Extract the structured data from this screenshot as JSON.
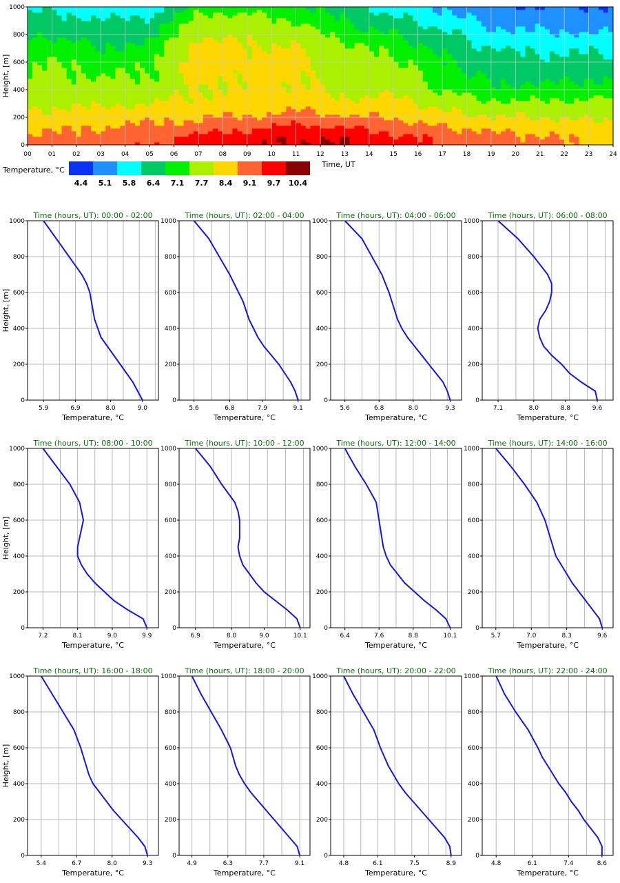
{
  "heatmap": {
    "ylabel": "Height, [m]",
    "xlabel": "Time, UT",
    "y_ticks": [
      "0",
      "200",
      "400",
      "600",
      "800",
      "1000"
    ],
    "x_ticks": [
      "00",
      "01",
      "02",
      "03",
      "04",
      "05",
      "06",
      "07",
      "08",
      "09",
      "10",
      "11",
      "12",
      "13",
      "14",
      "15",
      "16",
      "17",
      "18",
      "19",
      "20",
      "21",
      "22",
      "23",
      "24"
    ]
  },
  "colorbar": {
    "label": "Temperature, °C",
    "colors": [
      "#0a32f5",
      "#1e90ff",
      "#00ffff",
      "#00c864",
      "#00f000",
      "#aaf000",
      "#ffd700",
      "#ff6432",
      "#ff0000",
      "#8b0000"
    ],
    "labels": [
      "4.4",
      "5.1",
      "5.8",
      "6.4",
      "7.1",
      "7.7",
      "8.4",
      "9.1",
      "9.7",
      "10.4"
    ]
  },
  "panels_common": {
    "title_prefix": "Time (hours, UT): ",
    "xlabel": "Temperature, °C",
    "ylabel": "Height, [m]",
    "y_ticks": [
      "0",
      "200",
      "400",
      "600",
      "800",
      "1000"
    ]
  },
  "chart_data": [
    {
      "type": "heatmap",
      "title": "",
      "xlabel": "Time, UT",
      "ylabel": "Height, [m]",
      "x_range": [
        0,
        24
      ],
      "y_range": [
        0,
        1000
      ],
      "color_levels": [
        4.4,
        5.1,
        5.8,
        6.4,
        7.1,
        7.7,
        8.4,
        9.1,
        9.7,
        10.4
      ],
      "colorbar_label": "Temperature, °C"
    },
    {
      "type": "line",
      "time_range": "00:00 - 02:00",
      "xlabel": "Temperature, °C",
      "ylabel": "Height, [m]",
      "x_ticks": [
        "5.9",
        "6.9",
        "8.0",
        "9.0"
      ],
      "x_tick_values": [
        5.9,
        6.9,
        8.0,
        9.0
      ],
      "xlim": [
        5.4,
        9.5
      ],
      "ylim": [
        0,
        1000
      ],
      "height": [
        0,
        50,
        100,
        150,
        200,
        250,
        300,
        350,
        400,
        450,
        500,
        550,
        600,
        650,
        700,
        800,
        900,
        1000
      ],
      "temperature": [
        9.0,
        8.85,
        8.7,
        8.5,
        8.3,
        8.1,
        7.9,
        7.7,
        7.6,
        7.5,
        7.45,
        7.4,
        7.35,
        7.25,
        7.1,
        6.7,
        6.3,
        5.9
      ]
    },
    {
      "type": "line",
      "time_range": "02:00 - 04:00",
      "xlabel": "Temperature, °C",
      "ylabel": "Height, [m]",
      "x_ticks": [
        "5.6",
        "6.8",
        "7.9",
        "9.1"
      ],
      "x_tick_values": [
        5.6,
        6.8,
        7.9,
        9.1
      ],
      "xlim": [
        5.1,
        9.5
      ],
      "ylim": [
        0,
        1000
      ],
      "height": [
        0,
        50,
        100,
        150,
        200,
        250,
        300,
        350,
        400,
        450,
        500,
        550,
        600,
        700,
        800,
        900,
        1000
      ],
      "temperature": [
        9.1,
        9.0,
        8.85,
        8.65,
        8.45,
        8.2,
        7.95,
        7.75,
        7.6,
        7.45,
        7.35,
        7.25,
        7.1,
        6.8,
        6.45,
        6.1,
        5.6
      ]
    },
    {
      "type": "line",
      "time_range": "04:00 - 06:00",
      "xlabel": "Temperature, °C",
      "ylabel": "Height, [m]",
      "x_ticks": [
        "5.6",
        "6.8",
        "8.0",
        "9.3"
      ],
      "x_tick_values": [
        5.6,
        6.8,
        8.0,
        9.3
      ],
      "xlim": [
        5.1,
        9.7
      ],
      "ylim": [
        0,
        1000
      ],
      "height": [
        0,
        50,
        100,
        150,
        200,
        250,
        300,
        350,
        400,
        450,
        500,
        550,
        600,
        700,
        800,
        900,
        1000
      ],
      "temperature": [
        9.3,
        9.2,
        9.05,
        8.8,
        8.55,
        8.3,
        8.05,
        7.8,
        7.6,
        7.45,
        7.35,
        7.25,
        7.15,
        6.9,
        6.55,
        6.2,
        5.6
      ]
    },
    {
      "type": "line",
      "time_range": "06:00 - 08:00",
      "xlabel": "Temperature, °C",
      "ylabel": "Height, [m]",
      "x_ticks": [
        "7.1",
        "8.0",
        "8.8",
        "9.6"
      ],
      "x_tick_values": [
        7.1,
        8.0,
        8.8,
        9.6
      ],
      "xlim": [
        6.7,
        10.0
      ],
      "ylim": [
        0,
        1000
      ],
      "height": [
        0,
        50,
        100,
        150,
        200,
        250,
        300,
        350,
        400,
        450,
        500,
        550,
        600,
        650,
        700,
        800,
        900,
        1000
      ],
      "temperature": [
        9.6,
        9.55,
        9.2,
        8.9,
        8.7,
        8.45,
        8.25,
        8.15,
        8.1,
        8.15,
        8.3,
        8.4,
        8.45,
        8.45,
        8.35,
        8.0,
        7.6,
        7.1
      ]
    },
    {
      "type": "line",
      "time_range": "08:00 - 10:00",
      "xlabel": "Temperature, °C",
      "ylabel": "Height, [m]",
      "x_ticks": [
        "7.2",
        "8.1",
        "9.0",
        "9.9"
      ],
      "x_tick_values": [
        7.2,
        8.1,
        9.0,
        9.9
      ],
      "xlim": [
        6.8,
        10.2
      ],
      "ylim": [
        0,
        1000
      ],
      "height": [
        0,
        50,
        100,
        150,
        200,
        250,
        300,
        350,
        400,
        450,
        500,
        550,
        600,
        700,
        800,
        900,
        1000
      ],
      "temperature": [
        9.9,
        9.8,
        9.4,
        9.05,
        8.8,
        8.55,
        8.35,
        8.2,
        8.1,
        8.1,
        8.15,
        8.2,
        8.25,
        8.15,
        7.9,
        7.55,
        7.2
      ]
    },
    {
      "type": "line",
      "time_range": "10:00 - 12:00",
      "xlabel": "Temperature, °C",
      "ylabel": "Height, [m]",
      "x_ticks": [
        "6.9",
        "8.0",
        "9.0",
        "10.1"
      ],
      "x_tick_values": [
        6.9,
        8.0,
        9.0,
        10.1
      ],
      "xlim": [
        6.4,
        10.4
      ],
      "ylim": [
        0,
        1000
      ],
      "height": [
        0,
        50,
        100,
        150,
        200,
        250,
        300,
        350,
        400,
        450,
        500,
        550,
        600,
        650,
        700,
        800,
        900,
        1000
      ],
      "temperature": [
        10.1,
        10.0,
        9.7,
        9.35,
        9.0,
        8.75,
        8.55,
        8.35,
        8.25,
        8.2,
        8.25,
        8.25,
        8.25,
        8.2,
        8.1,
        7.7,
        7.35,
        6.9
      ]
    },
    {
      "type": "line",
      "time_range": "12:00 - 14:00",
      "xlabel": "Temperature, °C",
      "ylabel": "Height, [m]",
      "x_ticks": [
        "6.4",
        "7.6",
        "8.8",
        "10.1"
      ],
      "x_tick_values": [
        6.4,
        7.6,
        8.8,
        10.1
      ],
      "xlim": [
        5.9,
        10.5
      ],
      "ylim": [
        0,
        1000
      ],
      "height": [
        0,
        50,
        100,
        150,
        200,
        250,
        300,
        350,
        400,
        450,
        500,
        550,
        600,
        700,
        800,
        900,
        1000
      ],
      "temperature": [
        10.1,
        9.95,
        9.6,
        9.2,
        8.85,
        8.5,
        8.25,
        8.0,
        7.85,
        7.75,
        7.7,
        7.65,
        7.6,
        7.5,
        7.15,
        6.75,
        6.4
      ]
    },
    {
      "type": "line",
      "time_range": "14:00 - 16:00",
      "xlabel": "Temperature, °C",
      "ylabel": "Height, [m]",
      "x_ticks": [
        "5.7",
        "7.0",
        "8.3",
        "9.6"
      ],
      "x_tick_values": [
        5.7,
        7.0,
        8.3,
        9.6
      ],
      "xlim": [
        5.2,
        10.0
      ],
      "ylim": [
        0,
        1000
      ],
      "height": [
        0,
        50,
        100,
        150,
        200,
        250,
        300,
        350,
        400,
        450,
        500,
        550,
        600,
        700,
        800,
        900,
        1000
      ],
      "temperature": [
        9.6,
        9.5,
        9.25,
        9.0,
        8.75,
        8.5,
        8.3,
        8.1,
        7.9,
        7.8,
        7.7,
        7.6,
        7.5,
        7.2,
        6.75,
        6.25,
        5.7
      ]
    },
    {
      "type": "line",
      "time_range": "16:00 - 18:00",
      "xlabel": "Temperature, °C",
      "ylabel": "Height, [m]",
      "x_ticks": [
        "5.4",
        "6.7",
        "8.0",
        "9.3"
      ],
      "x_tick_values": [
        5.4,
        6.7,
        8.0,
        9.3
      ],
      "xlim": [
        4.9,
        9.7
      ],
      "ylim": [
        0,
        1000
      ],
      "height": [
        0,
        50,
        100,
        150,
        200,
        250,
        300,
        350,
        400,
        450,
        500,
        550,
        600,
        700,
        800,
        900,
        1000
      ],
      "temperature": [
        9.3,
        9.2,
        8.95,
        8.65,
        8.35,
        8.05,
        7.8,
        7.55,
        7.3,
        7.15,
        7.05,
        6.95,
        6.85,
        6.6,
        6.2,
        5.8,
        5.4
      ]
    },
    {
      "type": "line",
      "time_range": "18:00 - 20:00",
      "xlabel": "Temperature, °C",
      "ylabel": "Height, [m]",
      "x_ticks": [
        "4.9",
        "6.3",
        "7.7",
        "9.1"
      ],
      "x_tick_values": [
        4.9,
        6.3,
        7.7,
        9.1
      ],
      "xlim": [
        4.4,
        9.5
      ],
      "ylim": [
        0,
        1000
      ],
      "height": [
        0,
        50,
        100,
        150,
        200,
        250,
        300,
        350,
        400,
        450,
        500,
        550,
        600,
        700,
        800,
        900,
        1000
      ],
      "temperature": [
        9.1,
        9.0,
        8.7,
        8.4,
        8.1,
        7.8,
        7.5,
        7.2,
        6.95,
        6.75,
        6.6,
        6.5,
        6.4,
        6.05,
        5.65,
        5.25,
        4.9
      ]
    },
    {
      "type": "line",
      "time_range": "20:00 - 22:00",
      "xlabel": "Temperature, °C",
      "ylabel": "Height, [m]",
      "x_ticks": [
        "4.8",
        "6.1",
        "7.5",
        "8.9"
      ],
      "x_tick_values": [
        4.8,
        6.1,
        7.5,
        8.9
      ],
      "xlim": [
        4.3,
        9.3
      ],
      "ylim": [
        0,
        1000
      ],
      "height": [
        0,
        50,
        100,
        150,
        200,
        250,
        300,
        350,
        400,
        450,
        500,
        550,
        600,
        700,
        800,
        900,
        1000
      ],
      "temperature": [
        8.9,
        8.85,
        8.65,
        8.35,
        8.05,
        7.75,
        7.45,
        7.15,
        6.9,
        6.7,
        6.5,
        6.35,
        6.2,
        5.95,
        5.55,
        5.15,
        4.8
      ]
    },
    {
      "type": "line",
      "time_range": "22:00 - 24:00",
      "xlabel": "Temperature, °C",
      "ylabel": "Height, [m]",
      "x_ticks": [
        "4.8",
        "6.1",
        "7.4",
        "8.6"
      ],
      "x_tick_values": [
        4.8,
        6.1,
        7.4,
        8.6
      ],
      "xlim": [
        4.3,
        9.0
      ],
      "ylim": [
        0,
        1000
      ],
      "height": [
        0,
        50,
        100,
        150,
        200,
        250,
        300,
        350,
        400,
        450,
        500,
        550,
        600,
        700,
        800,
        900,
        1000
      ],
      "temperature": [
        8.6,
        8.6,
        8.45,
        8.2,
        7.95,
        7.75,
        7.5,
        7.3,
        7.05,
        6.85,
        6.65,
        6.45,
        6.3,
        5.95,
        5.5,
        5.1,
        4.8
      ]
    }
  ]
}
